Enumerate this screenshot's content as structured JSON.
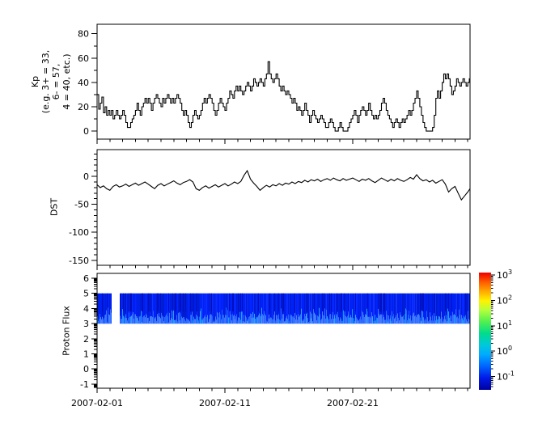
{
  "meta": {
    "background": "#ffffff",
    "line_color": "#000000",
    "frame_color": "#000000"
  },
  "panels": {
    "kp": {
      "ylabel_lines": [
        "Kp",
        "(e.g. 3+ = 33,",
        "6- = 57,",
        "4 = 40, etc.)"
      ],
      "ytick_labels": [
        "0",
        "20",
        "40",
        "60",
        "80"
      ]
    },
    "dst": {
      "ylabel": "DST",
      "ytick_labels": [
        "0",
        "-50",
        "-100",
        "-150"
      ]
    },
    "proton": {
      "ylabel": "Proton Flux",
      "ytick_labels": [
        "6",
        "5",
        "4",
        "3",
        "2",
        "1",
        "0",
        "-1"
      ]
    }
  },
  "xaxis": {
    "date_labels": [
      {
        "text": "2007-02-01",
        "day": 0
      },
      {
        "text": "2007-02-11",
        "day": 10
      },
      {
        "text": "2007-02-21",
        "day": 20
      }
    ],
    "days_total": 29.18,
    "minor_tick_every_days": 1
  },
  "colorbar": {
    "colormap": "jet",
    "scale": "log",
    "ticks": [
      {
        "base": "10",
        "exp": "3"
      },
      {
        "base": "10",
        "exp": "2"
      },
      {
        "base": "10",
        "exp": "1"
      },
      {
        "base": "10",
        "exp": "0"
      },
      {
        "base": "10",
        "exp": "-1"
      }
    ],
    "gradient": [
      [
        "0%",
        "#ee0000"
      ],
      [
        "8%",
        "#ff5a00"
      ],
      [
        "16%",
        "#ffaa00"
      ],
      [
        "24%",
        "#fff200"
      ],
      [
        "32%",
        "#b4ff3c"
      ],
      [
        "42%",
        "#50f050"
      ],
      [
        "52%",
        "#00dc8c"
      ],
      [
        "62%",
        "#00c8dc"
      ],
      [
        "70%",
        "#00aaff"
      ],
      [
        "80%",
        "#0064ff"
      ],
      [
        "90%",
        "#001ae6"
      ],
      [
        "100%",
        "#0000a0"
      ]
    ],
    "band_colors": {
      "base": "#0a14e6",
      "light": "#2e6bff",
      "cyan": "#00a8ff"
    }
  },
  "chart_data": [
    {
      "type": "line",
      "title": "Kp (e.g. 3+ = 33, 6- = 57, 4 = 40, etc.)",
      "step": true,
      "x_unit": "days since 2007-02-01",
      "x_step": 0.125,
      "x_range": [
        0,
        29.18
      ],
      "ylim": [
        -6.6,
        87.8
      ],
      "yticks": [
        0,
        20,
        40,
        60,
        80
      ],
      "values": [
        30,
        18,
        23,
        28,
        15,
        20,
        13,
        17,
        13,
        17,
        10,
        13,
        17,
        13,
        10,
        13,
        17,
        13,
        7,
        3,
        3,
        7,
        10,
        13,
        17,
        23,
        17,
        13,
        20,
        23,
        27,
        23,
        27,
        23,
        17,
        23,
        27,
        30,
        27,
        23,
        20,
        27,
        23,
        27,
        30,
        27,
        23,
        27,
        23,
        27,
        30,
        27,
        23,
        17,
        13,
        17,
        13,
        7,
        3,
        7,
        13,
        17,
        13,
        10,
        13,
        17,
        23,
        27,
        23,
        27,
        30,
        27,
        23,
        17,
        13,
        17,
        23,
        27,
        23,
        20,
        17,
        23,
        27,
        33,
        30,
        27,
        33,
        37,
        33,
        37,
        33,
        30,
        33,
        37,
        40,
        37,
        33,
        37,
        43,
        40,
        37,
        40,
        43,
        40,
        37,
        43,
        47,
        57,
        47,
        43,
        40,
        43,
        47,
        43,
        37,
        33,
        37,
        33,
        30,
        33,
        30,
        27,
        23,
        27,
        23,
        17,
        20,
        17,
        13,
        17,
        23,
        17,
        13,
        7,
        13,
        17,
        13,
        10,
        7,
        10,
        13,
        10,
        7,
        3,
        3,
        7,
        10,
        7,
        3,
        0,
        0,
        3,
        7,
        3,
        0,
        0,
        0,
        3,
        7,
        10,
        13,
        17,
        13,
        7,
        13,
        17,
        20,
        17,
        13,
        17,
        23,
        17,
        13,
        10,
        13,
        10,
        13,
        17,
        23,
        27,
        23,
        17,
        13,
        10,
        7,
        3,
        7,
        10,
        7,
        3,
        7,
        10,
        7,
        10,
        13,
        17,
        13,
        17,
        23,
        27,
        33,
        27,
        20,
        13,
        7,
        3,
        0,
        0,
        0,
        0,
        3,
        13,
        27,
        33,
        27,
        33,
        40,
        47,
        43,
        47,
        43,
        37,
        30,
        33,
        37,
        43,
        40,
        37,
        40,
        43,
        40,
        37,
        40,
        43
      ]
    },
    {
      "type": "line",
      "title": "DST",
      "step": false,
      "x_unit": "days since 2007-02-01",
      "x_step": 0.25,
      "x_range": [
        0,
        29.18
      ],
      "ylim": [
        -159,
        47.8
      ],
      "yticks": [
        -150,
        -100,
        -50,
        0
      ],
      "values": [
        -15,
        -20,
        -17,
        -22,
        -25,
        -18,
        -15,
        -19,
        -17,
        -14,
        -18,
        -15,
        -12,
        -16,
        -13,
        -10,
        -14,
        -18,
        -22,
        -16,
        -13,
        -17,
        -14,
        -11,
        -8,
        -12,
        -15,
        -11,
        -9,
        -6,
        -10,
        -22,
        -25,
        -20,
        -17,
        -21,
        -18,
        -15,
        -19,
        -16,
        -13,
        -17,
        -14,
        -10,
        -13,
        -9,
        2,
        10,
        -5,
        -12,
        -18,
        -25,
        -20,
        -16,
        -19,
        -15,
        -17,
        -13,
        -16,
        -12,
        -14,
        -10,
        -13,
        -9,
        -11,
        -7,
        -10,
        -6,
        -8,
        -5,
        -9,
        -6,
        -4,
        -7,
        -3,
        -6,
        -8,
        -4,
        -7,
        -5,
        -3,
        -6,
        -9,
        -5,
        -7,
        -4,
        -8,
        -11,
        -7,
        -3,
        -6,
        -9,
        -5,
        -8,
        -4,
        -7,
        -9,
        -6,
        -2,
        -5,
        3,
        -4,
        -8,
        -6,
        -10,
        -7,
        -12,
        -9,
        -6,
        -14,
        -28,
        -22,
        -18,
        -30,
        -42,
        -35,
        -28,
        -22
      ]
    },
    {
      "type": "heatmap",
      "title": "Proton Flux",
      "x_unit": "days since 2007-02-01",
      "x_range": [
        0,
        29.18
      ],
      "ylim": [
        -1.27,
        6.32
      ],
      "yticks": [
        -1,
        0,
        1,
        2,
        3,
        4,
        5,
        6
      ],
      "band": {
        "y_from": 3,
        "y_to": 5,
        "gap_days": [
          1.08,
          1.77
        ]
      },
      "colorbar": {
        "scale": "log",
        "tick_values": [
          1000,
          100,
          10,
          1,
          0.1
        ],
        "colormap": "jet"
      }
    }
  ]
}
